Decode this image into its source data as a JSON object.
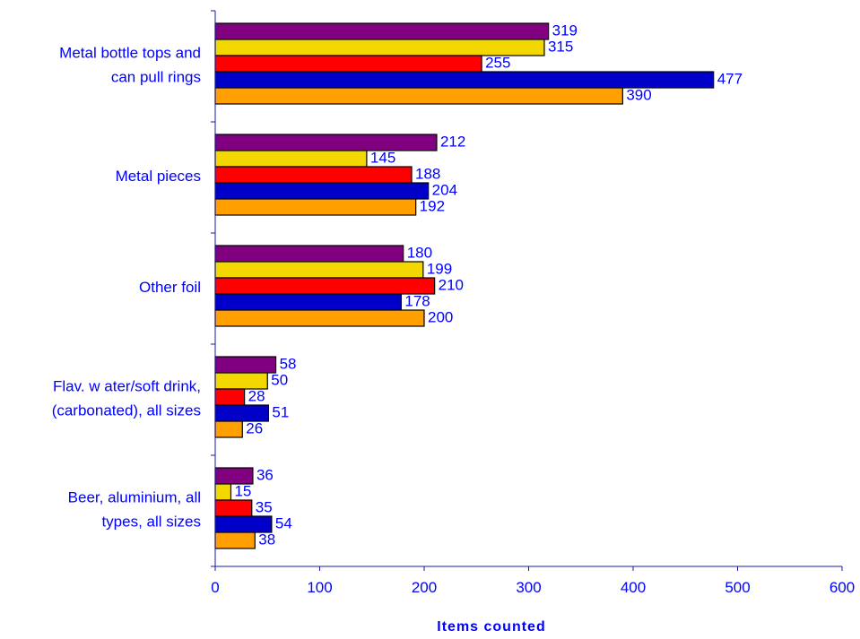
{
  "chart_data": {
    "type": "bar",
    "orientation": "horizontal",
    "xlabel": "Items counted",
    "ylabel": "",
    "xlim": [
      0,
      600
    ],
    "xticks": [
      0,
      100,
      200,
      300,
      400,
      500,
      600
    ],
    "grid": false,
    "legend": "none",
    "categories": [
      [
        "Metal bottle tops and",
        "can pull rings"
      ],
      [
        "Metal pieces"
      ],
      [
        "Other foil"
      ],
      [
        "Flav. w ater/soft drink,",
        "(carbonated), all sizes"
      ],
      [
        "Beer, aluminium, all",
        "types, all sizes"
      ]
    ],
    "series": [
      {
        "color": "#800080",
        "values": [
          319,
          212,
          180,
          58,
          36
        ]
      },
      {
        "color": "#f2d700",
        "values": [
          315,
          145,
          199,
          50,
          15
        ]
      },
      {
        "color": "#ff0000",
        "values": [
          255,
          188,
          210,
          28,
          35
        ]
      },
      {
        "color": "#0000c8",
        "values": [
          477,
          204,
          178,
          51,
          54
        ]
      },
      {
        "color": "#ffa000",
        "values": [
          390,
          192,
          200,
          26,
          38
        ]
      }
    ]
  }
}
